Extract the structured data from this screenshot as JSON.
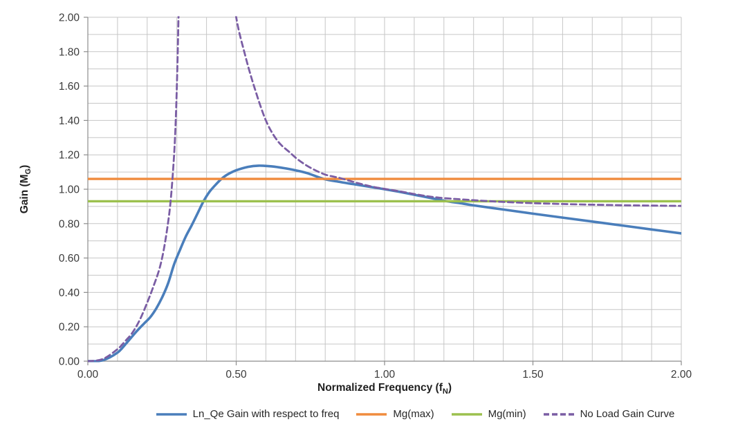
{
  "chart_data": {
    "type": "line",
    "title": "",
    "xlabel": {
      "main": "Normalized Frequency (f",
      "sub": "N",
      "end": ")"
    },
    "ylabel": {
      "main": "Gain (M",
      "sub": "G",
      "end": ")"
    },
    "xlim": [
      0,
      2
    ],
    "ylim": [
      0,
      2
    ],
    "grid": true,
    "grid_step": 0.1,
    "legend_position": "bottom",
    "x_ticks": [
      {
        "v": 0.0,
        "label": "0.00"
      },
      {
        "v": 0.5,
        "label": "0.50"
      },
      {
        "v": 1.0,
        "label": "1.00"
      },
      {
        "v": 1.5,
        "label": "1.50"
      },
      {
        "v": 2.0,
        "label": "2.00"
      }
    ],
    "y_ticks": [
      {
        "v": 0.0,
        "label": "0.00"
      },
      {
        "v": 0.2,
        "label": "0.20"
      },
      {
        "v": 0.4,
        "label": "0.40"
      },
      {
        "v": 0.6,
        "label": "0.60"
      },
      {
        "v": 0.8,
        "label": "0.80"
      },
      {
        "v": 1.0,
        "label": "1.00"
      },
      {
        "v": 1.2,
        "label": "1.20"
      },
      {
        "v": 1.4,
        "label": "1.40"
      },
      {
        "v": 1.6,
        "label": "1.60"
      },
      {
        "v": 1.8,
        "label": "1.80"
      },
      {
        "v": 2.0,
        "label": "2.00"
      }
    ],
    "colors": {
      "background": "#ffffff",
      "grid": "#c6c6c6",
      "axis": "#8c8c8c",
      "tick_text": "#3a3a3a",
      "title_text": "#1f1f1f"
    },
    "series": [
      {
        "name": "Ln_Qe Gain with respect to freq",
        "color": "#4a7ebb",
        "dash": "solid",
        "width": 3.6,
        "peak": {
          "x": 0.575,
          "y": 1.137
        },
        "points": [
          [
            0.0,
            0.0
          ],
          [
            0.05,
            0.005
          ],
          [
            0.1,
            0.05
          ],
          [
            0.13,
            0.105
          ],
          [
            0.16,
            0.165
          ],
          [
            0.19,
            0.22
          ],
          [
            0.21,
            0.255
          ],
          [
            0.23,
            0.305
          ],
          [
            0.25,
            0.37
          ],
          [
            0.27,
            0.45
          ],
          [
            0.29,
            0.56
          ],
          [
            0.31,
            0.645
          ],
          [
            0.33,
            0.725
          ],
          [
            0.35,
            0.79
          ],
          [
            0.37,
            0.86
          ],
          [
            0.39,
            0.93
          ],
          [
            0.41,
            0.985
          ],
          [
            0.43,
            1.025
          ],
          [
            0.45,
            1.06
          ],
          [
            0.47,
            1.085
          ],
          [
            0.5,
            1.11
          ],
          [
            0.54,
            1.13
          ],
          [
            0.575,
            1.137
          ],
          [
            0.62,
            1.133
          ],
          [
            0.66,
            1.123
          ],
          [
            0.7,
            1.11
          ],
          [
            0.74,
            1.093
          ],
          [
            0.795,
            1.06
          ],
          [
            0.85,
            1.042
          ],
          [
            0.9,
            1.028
          ],
          [
            0.95,
            1.014
          ],
          [
            1.0,
            1.0
          ],
          [
            1.05,
            0.985
          ],
          [
            1.1,
            0.968
          ],
          [
            1.15,
            0.951
          ],
          [
            1.21,
            0.93
          ],
          [
            1.25,
            0.92
          ],
          [
            1.3,
            0.906
          ],
          [
            1.4,
            0.882
          ],
          [
            1.5,
            0.858
          ],
          [
            1.6,
            0.835
          ],
          [
            1.7,
            0.812
          ],
          [
            1.8,
            0.789
          ],
          [
            1.9,
            0.766
          ],
          [
            2.0,
            0.743
          ]
        ]
      },
      {
        "name": "Mg(max)",
        "color": "#f08b3d",
        "dash": "solid",
        "width": 3.4,
        "value": 1.06,
        "points": [
          [
            0,
            1.06
          ],
          [
            2,
            1.06
          ]
        ]
      },
      {
        "name": "Mg(min)",
        "color": "#9cc04e",
        "dash": "solid",
        "width": 3.4,
        "value": 0.93,
        "points": [
          [
            0,
            0.93
          ],
          [
            2,
            0.93
          ]
        ]
      },
      {
        "name": "No Load Gain Curve",
        "color": "#7a5da4",
        "dash": "dashed",
        "width": 2.8,
        "asymptote": 0.9,
        "points": [
          [
            0.0,
            0.0
          ],
          [
            0.05,
            0.012
          ],
          [
            0.1,
            0.07
          ],
          [
            0.125,
            0.115
          ],
          [
            0.15,
            0.165
          ],
          [
            0.175,
            0.24
          ],
          [
            0.2,
            0.34
          ],
          [
            0.22,
            0.43
          ],
          [
            0.24,
            0.53
          ],
          [
            0.255,
            0.64
          ],
          [
            0.27,
            0.8
          ],
          [
            0.28,
            0.95
          ],
          [
            0.29,
            1.18
          ],
          [
            0.295,
            1.35
          ],
          [
            0.3,
            1.6
          ],
          [
            0.305,
            1.95
          ],
          [
            0.31,
            2.4
          ],
          [
            0.315,
            3.0
          ],
          null,
          [
            0.45,
            3.0
          ],
          [
            0.465,
            2.6
          ],
          [
            0.48,
            2.3
          ],
          [
            0.5,
            2.0
          ],
          [
            0.53,
            1.78
          ],
          [
            0.56,
            1.6
          ],
          [
            0.6,
            1.4
          ],
          [
            0.64,
            1.28
          ],
          [
            0.68,
            1.215
          ],
          [
            0.71,
            1.17
          ],
          [
            0.75,
            1.125
          ],
          [
            0.8,
            1.085
          ],
          [
            0.85,
            1.065
          ],
          [
            0.9,
            1.04
          ],
          [
            0.95,
            1.018
          ],
          [
            1.0,
            1.002
          ],
          [
            1.05,
            0.988
          ],
          [
            1.1,
            0.972
          ],
          [
            1.15,
            0.958
          ],
          [
            1.2,
            0.948
          ],
          [
            1.25,
            0.942
          ],
          [
            1.3,
            0.936
          ],
          [
            1.35,
            0.931
          ],
          [
            1.4,
            0.926
          ],
          [
            1.5,
            0.919
          ],
          [
            1.6,
            0.914
          ],
          [
            1.7,
            0.91
          ],
          [
            1.8,
            0.907
          ],
          [
            1.9,
            0.905
          ],
          [
            2.0,
            0.903
          ]
        ]
      }
    ]
  }
}
